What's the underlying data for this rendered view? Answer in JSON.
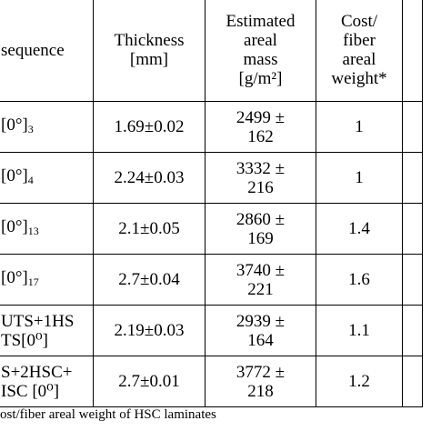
{
  "header": {
    "sequence": "sequence",
    "thickness": [
      "Thickness",
      "[mm]"
    ],
    "areal_mass": [
      "Estimated",
      "areal",
      "mass",
      "[g/m²]"
    ],
    "cost": [
      "Cost/",
      "fiber",
      "areal",
      "weight*"
    ]
  },
  "rows": [
    {
      "seq": [
        "[0°]"
      ],
      "seq_sub": "3",
      "thickness": "1.69±0.02",
      "mass": [
        "2499 ±",
        "162"
      ],
      "cost": "1"
    },
    {
      "seq": [
        "[0°]"
      ],
      "seq_sub": "4",
      "thickness": "2.24±0.03",
      "mass": [
        "3332 ±",
        "216"
      ],
      "cost": "1"
    },
    {
      "seq": [
        "[0°]"
      ],
      "seq_sub": "13",
      "thickness": "2.1±0.05",
      "mass": [
        "2860 ±",
        "169"
      ],
      "cost": "1.4"
    },
    {
      "seq": [
        "[0°]"
      ],
      "seq_sub": "17",
      "thickness": "2.7±0.04",
      "mass": [
        "3740 ±",
        "221"
      ],
      "cost": "1.6"
    },
    {
      "seq": [
        "UTS+1HS",
        "TS[0⁰]"
      ],
      "seq_sub": "",
      "thickness": "2.19±0.03",
      "mass": [
        "2939 ±",
        "164"
      ],
      "cost": "1.1"
    },
    {
      "seq": [
        "S+2HSC+",
        "ISC [0⁰]"
      ],
      "seq_sub": "",
      "thickness": "2.7±0.01",
      "mass": [
        "3772 ±",
        "218"
      ],
      "cost": "1.2"
    }
  ],
  "footnote": "ost/fiber areal weight of HSC laminates"
}
